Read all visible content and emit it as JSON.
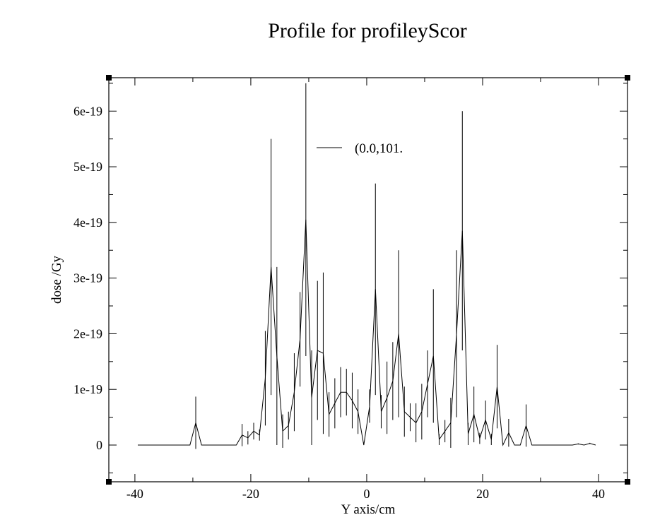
{
  "chart_data": {
    "type": "line",
    "title": "Profile for profileyScor",
    "xlabel": "Y axis/cm",
    "ylabel": "dose /Gy",
    "xlim": [
      -44.5,
      45
    ],
    "ylim": [
      -6.6e-20,
      6.6e-19
    ],
    "xticks": [
      -40,
      -20,
      0,
      20,
      40
    ],
    "xtick_labels": [
      "-40",
      "-20",
      "0",
      "20",
      "40"
    ],
    "yticks": [
      0,
      1e-19,
      2e-19,
      3e-19,
      4e-19,
      5e-19,
      6e-19
    ],
    "ytick_labels": [
      "0",
      "1e-19",
      "2e-19",
      "3e-19",
      "4e-19",
      "5e-19",
      "6e-19"
    ],
    "grid": false,
    "legend_position": "top-center",
    "series": [
      {
        "name": "(0.0,101.",
        "color": "#000000",
        "x": [
          -39.5,
          -30.5,
          -29.5,
          -28.5,
          -22.5,
          -21.5,
          -20.5,
          -19.5,
          -18.5,
          -17.5,
          -16.5,
          -15.5,
          -14.5,
          -13.5,
          -12.5,
          -11.5,
          -10.5,
          -9.5,
          -8.5,
          -7.5,
          -6.5,
          -5.5,
          -4.5,
          -3.5,
          -2.5,
          -1.5,
          -0.5,
          0.5,
          1.5,
          2.5,
          3.5,
          4.5,
          5.5,
          6.5,
          7.5,
          8.5,
          9.5,
          10.5,
          11.5,
          12.5,
          13.5,
          14.5,
          15.5,
          16.5,
          17.5,
          18.5,
          19.5,
          20.5,
          21.5,
          22.5,
          23.5,
          24.5,
          25.5,
          26.5,
          27.5,
          28.5,
          35.5,
          36.5,
          37.5,
          38.5,
          39.5
        ],
        "y": [
          0,
          0,
          4e-20,
          0,
          0,
          1.8e-20,
          1.3e-20,
          2.5e-20,
          1.8e-20,
          1.2e-19,
          3.2e-19,
          1.6e-19,
          2.5e-20,
          3.5e-20,
          9.5e-20,
          1.9e-19,
          4.05e-19,
          8.5e-20,
          1.7e-19,
          1.65e-19,
          5.5e-20,
          7.5e-20,
          9.5e-20,
          9.5e-20,
          8e-20,
          6e-20,
          0,
          7e-20,
          2.8e-19,
          6e-20,
          8.5e-20,
          1.15e-19,
          2e-19,
          6e-20,
          5e-20,
          4e-20,
          6e-20,
          1.1e-19,
          1.6e-19,
          1e-20,
          2.5e-20,
          4e-20,
          2e-19,
          3.85e-19,
          2e-20,
          5.5e-20,
          1.2e-20,
          4.5e-20,
          1e-20,
          1.05e-19,
          0,
          2.2e-20,
          0,
          0,
          3.5e-20,
          0,
          0,
          2e-21,
          0,
          3e-21,
          0
        ],
        "err": [
          0,
          0,
          4.7e-20,
          0,
          0,
          2e-20,
          1.2e-20,
          1.5e-20,
          1e-20,
          8.5e-20,
          2.3e-19,
          1.6e-19,
          3e-20,
          2.5e-20,
          7e-20,
          8.5e-20,
          2.45e-19,
          8.5e-20,
          1.25e-19,
          1.45e-19,
          4e-20,
          4.5e-20,
          4.5e-20,
          4.2e-20,
          5e-20,
          4e-20,
          0,
          3e-20,
          1.9e-19,
          3e-20,
          6.5e-20,
          7e-20,
          1.5e-19,
          4.5e-20,
          2.5e-20,
          3.5e-20,
          5e-20,
          6e-20,
          1.2e-19,
          1e-20,
          2e-20,
          4.5e-20,
          1.5e-19,
          2.15e-19,
          2e-20,
          5e-20,
          1e-20,
          3.5e-20,
          1e-20,
          7.5e-20,
          0,
          2.5e-20,
          0,
          0,
          3.8e-20,
          0,
          0,
          1e-21,
          0,
          1e-21,
          0
        ]
      }
    ]
  }
}
